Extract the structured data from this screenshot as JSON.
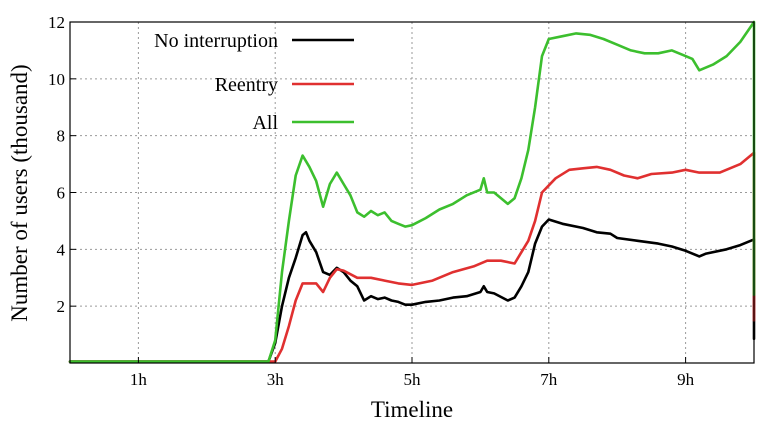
{
  "chart_data": {
    "type": "line",
    "title": "",
    "xlabel": "Timeline",
    "ylabel": "Number of users (thousand)",
    "xlim": [
      0,
      10
    ],
    "ylim": [
      0,
      12
    ],
    "x_ticks": [
      {
        "value": 1,
        "label": "1h"
      },
      {
        "value": 3,
        "label": "3h"
      },
      {
        "value": 5,
        "label": "5h"
      },
      {
        "value": 7,
        "label": "7h"
      },
      {
        "value": 9,
        "label": "9h"
      }
    ],
    "y_ticks": [
      {
        "value": 2,
        "label": "2"
      },
      {
        "value": 4,
        "label": "4"
      },
      {
        "value": 6,
        "label": "6"
      },
      {
        "value": 8,
        "label": "8"
      },
      {
        "value": 10,
        "label": "10"
      },
      {
        "value": 12,
        "label": "12"
      }
    ],
    "grid": true,
    "legend_position": "top-left",
    "series": [
      {
        "name": "No interruption",
        "color": "#000000",
        "points": [
          [
            0,
            0.05
          ],
          [
            2.9,
            0.05
          ],
          [
            3.0,
            0.7
          ],
          [
            3.1,
            2.0
          ],
          [
            3.2,
            3.0
          ],
          [
            3.3,
            3.7
          ],
          [
            3.4,
            4.5
          ],
          [
            3.45,
            4.6
          ],
          [
            3.5,
            4.3
          ],
          [
            3.6,
            3.9
          ],
          [
            3.7,
            3.2
          ],
          [
            3.8,
            3.1
          ],
          [
            3.9,
            3.35
          ],
          [
            4.0,
            3.2
          ],
          [
            4.1,
            2.9
          ],
          [
            4.2,
            2.7
          ],
          [
            4.3,
            2.2
          ],
          [
            4.4,
            2.35
          ],
          [
            4.5,
            2.25
          ],
          [
            4.6,
            2.3
          ],
          [
            4.7,
            2.2
          ],
          [
            4.8,
            2.15
          ],
          [
            4.9,
            2.05
          ],
          [
            5.0,
            2.05
          ],
          [
            5.2,
            2.15
          ],
          [
            5.4,
            2.2
          ],
          [
            5.6,
            2.3
          ],
          [
            5.8,
            2.35
          ],
          [
            6.0,
            2.5
          ],
          [
            6.05,
            2.7
          ],
          [
            6.1,
            2.5
          ],
          [
            6.2,
            2.45
          ],
          [
            6.4,
            2.2
          ],
          [
            6.5,
            2.3
          ],
          [
            6.6,
            2.7
          ],
          [
            6.7,
            3.2
          ],
          [
            6.8,
            4.2
          ],
          [
            6.9,
            4.8
          ],
          [
            7.0,
            5.05
          ],
          [
            7.2,
            4.9
          ],
          [
            7.5,
            4.75
          ],
          [
            7.7,
            4.6
          ],
          [
            7.9,
            4.55
          ],
          [
            8.0,
            4.4
          ],
          [
            8.3,
            4.3
          ],
          [
            8.6,
            4.2
          ],
          [
            8.8,
            4.1
          ],
          [
            9.0,
            3.95
          ],
          [
            9.2,
            3.75
          ],
          [
            9.3,
            3.85
          ],
          [
            9.6,
            4.0
          ],
          [
            9.8,
            4.15
          ],
          [
            10.0,
            4.35
          ],
          [
            10.0,
            0.85
          ]
        ]
      },
      {
        "name": "Reentry",
        "color": "#e03030",
        "points": [
          [
            0,
            0.05
          ],
          [
            3.0,
            0.05
          ],
          [
            3.1,
            0.5
          ],
          [
            3.2,
            1.3
          ],
          [
            3.3,
            2.2
          ],
          [
            3.4,
            2.8
          ],
          [
            3.6,
            2.8
          ],
          [
            3.7,
            2.5
          ],
          [
            3.8,
            3.0
          ],
          [
            3.9,
            3.3
          ],
          [
            4.0,
            3.25
          ],
          [
            4.2,
            3.0
          ],
          [
            4.4,
            3.0
          ],
          [
            4.6,
            2.9
          ],
          [
            4.8,
            2.8
          ],
          [
            5.0,
            2.75
          ],
          [
            5.3,
            2.9
          ],
          [
            5.6,
            3.2
          ],
          [
            5.9,
            3.4
          ],
          [
            6.1,
            3.6
          ],
          [
            6.3,
            3.6
          ],
          [
            6.5,
            3.5
          ],
          [
            6.6,
            3.9
          ],
          [
            6.7,
            4.3
          ],
          [
            6.8,
            5.0
          ],
          [
            6.9,
            6.0
          ],
          [
            7.1,
            6.5
          ],
          [
            7.3,
            6.8
          ],
          [
            7.5,
            6.85
          ],
          [
            7.7,
            6.9
          ],
          [
            7.9,
            6.8
          ],
          [
            8.1,
            6.6
          ],
          [
            8.3,
            6.5
          ],
          [
            8.5,
            6.65
          ],
          [
            8.8,
            6.7
          ],
          [
            9.0,
            6.8
          ],
          [
            9.2,
            6.7
          ],
          [
            9.5,
            6.7
          ],
          [
            9.8,
            7.0
          ],
          [
            10.0,
            7.4
          ],
          [
            10.0,
            1.5
          ]
        ]
      },
      {
        "name": "All",
        "color": "#3cbf2e",
        "points": [
          [
            0,
            0.05
          ],
          [
            2.9,
            0.05
          ],
          [
            3.0,
            0.8
          ],
          [
            3.1,
            3.2
          ],
          [
            3.2,
            5.0
          ],
          [
            3.3,
            6.6
          ],
          [
            3.4,
            7.3
          ],
          [
            3.5,
            6.9
          ],
          [
            3.6,
            6.4
          ],
          [
            3.7,
            5.5
          ],
          [
            3.8,
            6.3
          ],
          [
            3.9,
            6.7
          ],
          [
            4.0,
            6.3
          ],
          [
            4.1,
            5.9
          ],
          [
            4.2,
            5.3
          ],
          [
            4.3,
            5.15
          ],
          [
            4.4,
            5.35
          ],
          [
            4.5,
            5.2
          ],
          [
            4.6,
            5.3
          ],
          [
            4.7,
            5.0
          ],
          [
            4.8,
            4.9
          ],
          [
            4.9,
            4.8
          ],
          [
            5.0,
            4.85
          ],
          [
            5.2,
            5.1
          ],
          [
            5.4,
            5.4
          ],
          [
            5.6,
            5.6
          ],
          [
            5.8,
            5.9
          ],
          [
            6.0,
            6.1
          ],
          [
            6.05,
            6.5
          ],
          [
            6.1,
            6.0
          ],
          [
            6.2,
            6.0
          ],
          [
            6.4,
            5.6
          ],
          [
            6.5,
            5.8
          ],
          [
            6.6,
            6.5
          ],
          [
            6.7,
            7.5
          ],
          [
            6.8,
            9.0
          ],
          [
            6.9,
            10.8
          ],
          [
            7.0,
            11.4
          ],
          [
            7.2,
            11.5
          ],
          [
            7.4,
            11.6
          ],
          [
            7.6,
            11.55
          ],
          [
            7.8,
            11.4
          ],
          [
            8.0,
            11.2
          ],
          [
            8.2,
            11.0
          ],
          [
            8.4,
            10.9
          ],
          [
            8.6,
            10.9
          ],
          [
            8.8,
            11.0
          ],
          [
            9.0,
            10.8
          ],
          [
            9.1,
            10.7
          ],
          [
            9.2,
            10.3
          ],
          [
            9.4,
            10.5
          ],
          [
            9.6,
            10.8
          ],
          [
            9.8,
            11.3
          ],
          [
            10.0,
            12.0
          ],
          [
            10.0,
            2.4
          ]
        ]
      }
    ]
  }
}
